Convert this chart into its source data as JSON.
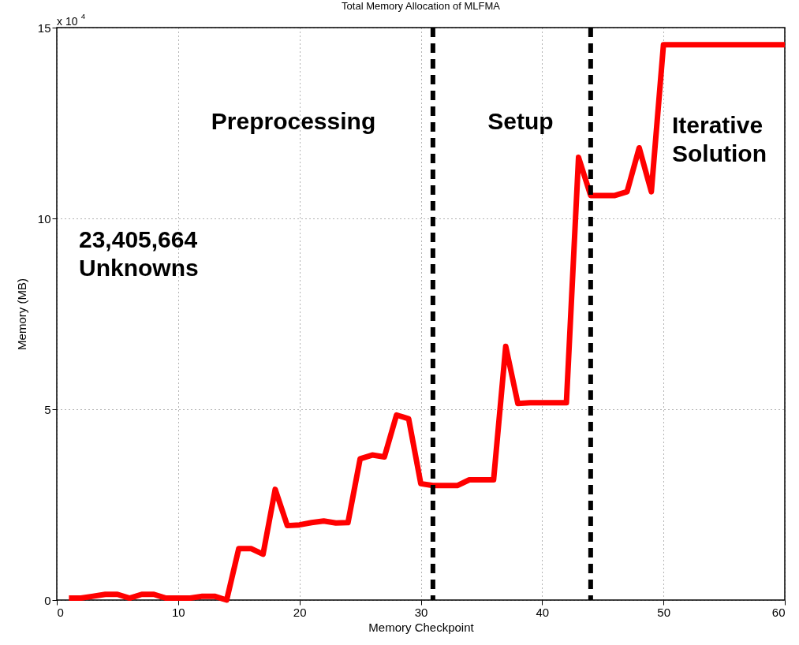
{
  "chart_data": {
    "type": "line",
    "title": "Total Memory Allocation of MLFMA",
    "xlabel": "Memory Checkpoint",
    "ylabel": "Memory (MB)",
    "x": [
      1,
      2,
      3,
      4,
      5,
      6,
      7,
      8,
      9,
      10,
      11,
      12,
      13,
      14,
      15,
      16,
      17,
      18,
      19,
      20,
      21,
      22,
      23,
      24,
      25,
      26,
      27,
      28,
      29,
      30,
      31,
      32,
      33,
      34,
      35,
      36,
      37,
      38,
      39,
      40,
      41,
      42,
      43,
      44,
      45,
      46,
      47,
      48,
      49,
      50,
      60
    ],
    "series": [
      {
        "color": "#ff0000",
        "values": [
          0.05,
          0.05,
          0.1,
          0.15,
          0.15,
          0.05,
          0.15,
          0.15,
          0.05,
          0.05,
          0.05,
          0.1,
          0.1,
          0,
          1.35,
          1.35,
          1.2,
          2.9,
          1.95,
          1.97,
          2.03,
          2.07,
          2.02,
          2.03,
          3.7,
          3.8,
          3.75,
          4.85,
          4.75,
          3.05,
          3.0,
          3.0,
          3.0,
          3.15,
          3.15,
          3.15,
          6.65,
          5.15,
          5.17,
          5.17,
          5.17,
          5.17,
          11.6,
          10.6,
          10.6,
          10.6,
          10.7,
          11.85,
          10.7,
          14.55,
          14.55
        ]
      }
    ],
    "xlim": [
      0,
      60
    ],
    "xticks": [
      0,
      10,
      20,
      30,
      40,
      50,
      60
    ],
    "ylim": [
      0,
      15
    ],
    "yticks": [
      0,
      5,
      10,
      15
    ],
    "grid": true,
    "marker": "none",
    "line_style": "solid",
    "ref_lines": [
      {
        "axis": "x",
        "value": 31,
        "color": "#000000",
        "line_style": "dashed"
      },
      {
        "axis": "x",
        "value": 44,
        "color": "#000000",
        "line_style": "dashed"
      }
    ],
    "annotations": [
      "x 10$^{4}$",
      "Preprocessing",
      "Setup",
      "Iterative Solution",
      "23,405,664 Unknowns"
    ]
  }
}
